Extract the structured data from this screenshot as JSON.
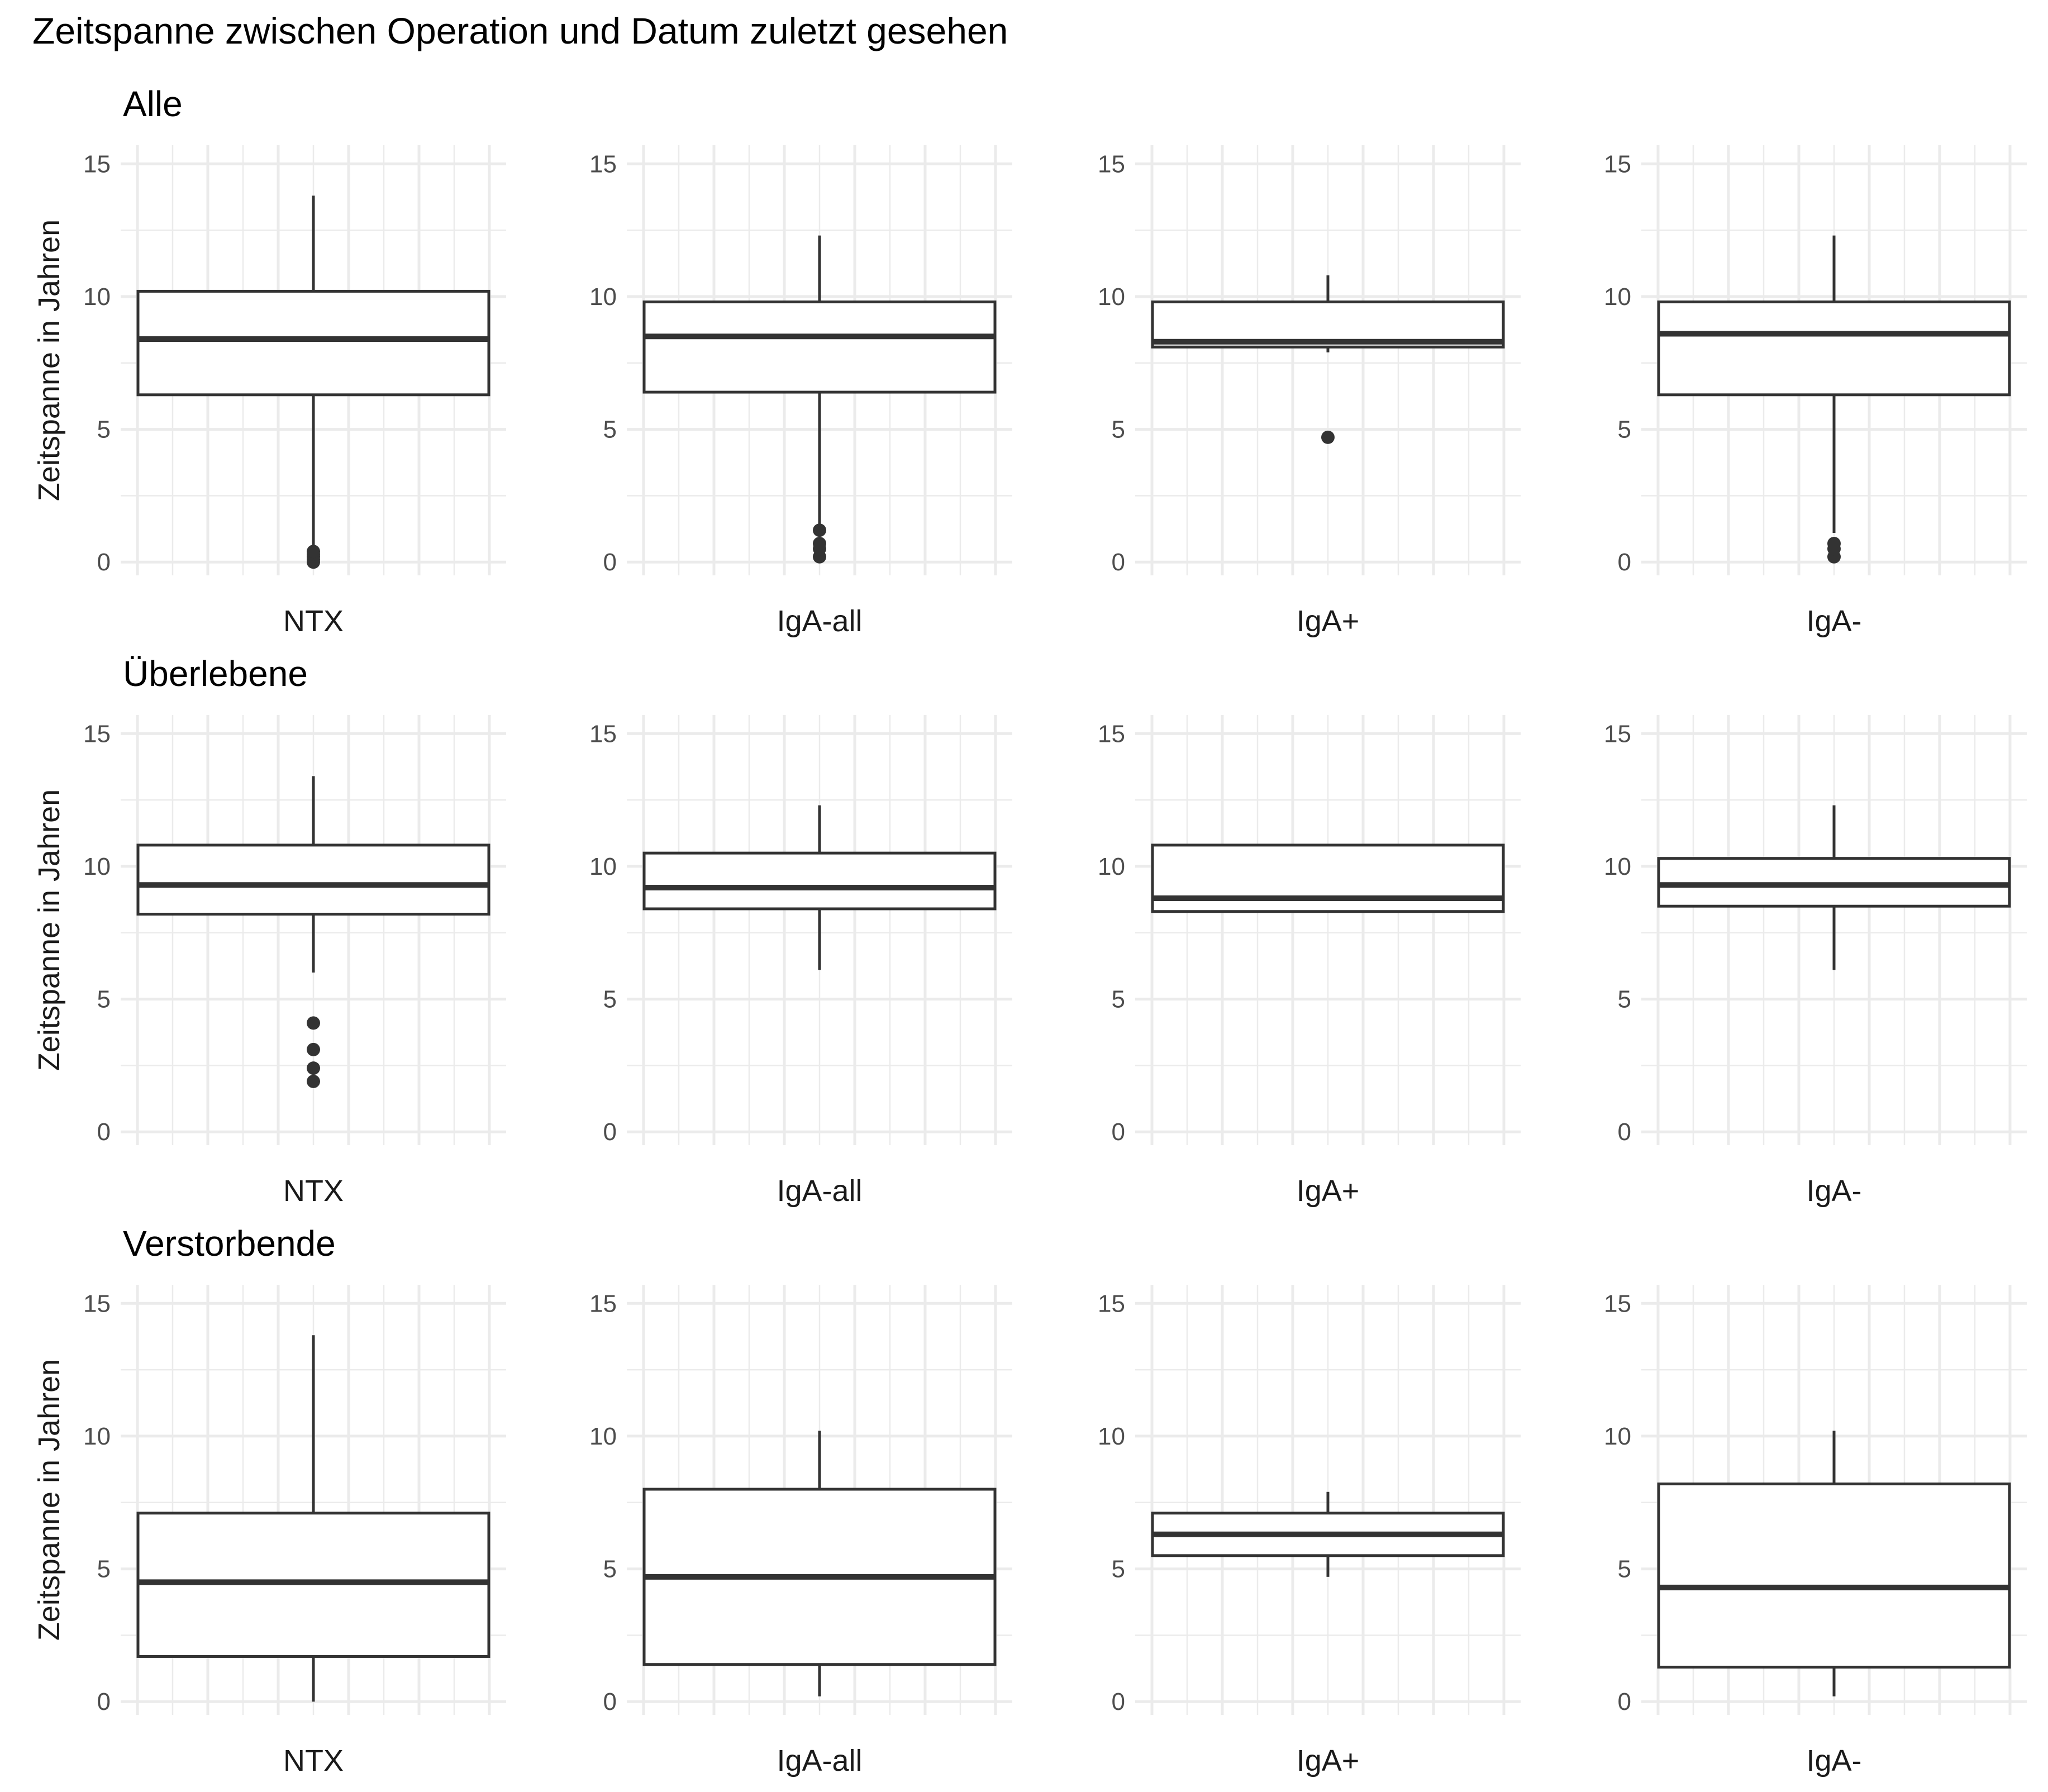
{
  "title": "Zeitspanne zwischen Operation und Datum zuletzt gesehen",
  "colors": {
    "line": "#333333",
    "grid": "#ebebeb",
    "background": "#ffffff"
  },
  "chart_data": [
    {
      "type": "boxplot",
      "row_title": "Alle",
      "ylabel": "Zeitspanne in Jahren",
      "yticks": [
        0,
        5,
        10,
        15
      ],
      "ylim": [
        -0.5,
        15.7
      ],
      "grid": true,
      "panels": [
        {
          "category": "NTX",
          "q1": 6.3,
          "median": 8.4,
          "q3": 10.2,
          "whisker_low": 0.5,
          "whisker_high": 13.8,
          "outliers": [
            0.0,
            0.1,
            0.2,
            0.3,
            0.4
          ]
        },
        {
          "category": "IgA-all",
          "q1": 6.4,
          "median": 8.5,
          "q3": 9.8,
          "whisker_low": 1.2,
          "whisker_high": 12.3,
          "outliers": [
            0.2,
            0.5,
            0.7,
            1.2
          ]
        },
        {
          "category": "IgA+",
          "q1": 8.1,
          "median": 8.3,
          "q3": 9.8,
          "whisker_low": 7.9,
          "whisker_high": 10.8,
          "outliers": [
            4.7
          ]
        },
        {
          "category": "IgA-",
          "q1": 6.3,
          "median": 8.6,
          "q3": 9.8,
          "whisker_low": 1.1,
          "whisker_high": 12.3,
          "outliers": [
            0.2,
            0.5,
            0.7
          ]
        }
      ]
    },
    {
      "type": "boxplot",
      "row_title": "Überlebene",
      "ylabel": "Zeitspanne in Jahren",
      "yticks": [
        0,
        5,
        10,
        15
      ],
      "ylim": [
        -0.5,
        15.7
      ],
      "grid": true,
      "panels": [
        {
          "category": "NTX",
          "q1": 8.2,
          "median": 9.3,
          "q3": 10.8,
          "whisker_low": 6.0,
          "whisker_high": 13.4,
          "outliers": [
            1.9,
            2.4,
            3.1,
            4.1
          ]
        },
        {
          "category": "IgA-all",
          "q1": 8.4,
          "median": 9.2,
          "q3": 10.5,
          "whisker_low": 6.1,
          "whisker_high": 12.3,
          "outliers": []
        },
        {
          "category": "IgA+",
          "q1": 8.3,
          "median": 8.8,
          "q3": 10.8,
          "whisker_low": 8.3,
          "whisker_high": 10.8,
          "outliers": []
        },
        {
          "category": "IgA-",
          "q1": 8.5,
          "median": 9.3,
          "q3": 10.3,
          "whisker_low": 6.1,
          "whisker_high": 12.3,
          "outliers": []
        }
      ]
    },
    {
      "type": "boxplot",
      "row_title": "Verstorbende",
      "ylabel": "Zeitspanne in Jahren",
      "yticks": [
        0,
        5,
        10,
        15
      ],
      "ylim": [
        -0.5,
        15.7
      ],
      "grid": true,
      "panels": [
        {
          "category": "NTX",
          "q1": 1.7,
          "median": 4.5,
          "q3": 7.1,
          "whisker_low": 0.0,
          "whisker_high": 13.8,
          "outliers": []
        },
        {
          "category": "IgA-all",
          "q1": 1.4,
          "median": 4.7,
          "q3": 8.0,
          "whisker_low": 0.2,
          "whisker_high": 10.2,
          "outliers": []
        },
        {
          "category": "IgA+",
          "q1": 5.5,
          "median": 6.3,
          "q3": 7.1,
          "whisker_low": 4.7,
          "whisker_high": 7.9,
          "outliers": []
        },
        {
          "category": "IgA-",
          "q1": 1.3,
          "median": 4.3,
          "q3": 8.2,
          "whisker_low": 0.2,
          "whisker_high": 10.2,
          "outliers": []
        }
      ]
    }
  ]
}
